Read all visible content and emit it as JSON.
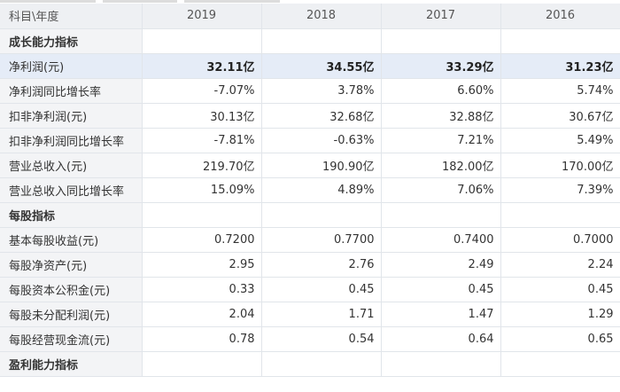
{
  "header": {
    "label": "科目\\年度",
    "years": [
      "2019",
      "2018",
      "2017",
      "2016"
    ]
  },
  "rows": [
    {
      "type": "section",
      "label": "成长能力指标"
    },
    {
      "type": "highlight",
      "label": "净利润(元)",
      "values": [
        "32.11亿",
        "34.55亿",
        "33.29亿",
        "31.23亿"
      ]
    },
    {
      "type": "data",
      "label": "净利润同比增长率",
      "values": [
        "-7.07%",
        "3.78%",
        "6.60%",
        "5.74%"
      ]
    },
    {
      "type": "data",
      "label": "扣非净利润(元)",
      "values": [
        "30.13亿",
        "32.68亿",
        "32.88亿",
        "30.67亿"
      ]
    },
    {
      "type": "data",
      "label": "扣非净利润同比增长率",
      "values": [
        "-7.81%",
        "-0.63%",
        "7.21%",
        "5.49%"
      ]
    },
    {
      "type": "data",
      "label": "营业总收入(元)",
      "values": [
        "219.70亿",
        "190.90亿",
        "182.00亿",
        "170.00亿"
      ]
    },
    {
      "type": "data",
      "label": "营业总收入同比增长率",
      "values": [
        "15.09%",
        "4.89%",
        "7.06%",
        "7.39%"
      ]
    },
    {
      "type": "section",
      "label": "每股指标"
    },
    {
      "type": "data",
      "label": "基本每股收益(元)",
      "values": [
        "0.7200",
        "0.7700",
        "0.7400",
        "0.7000"
      ]
    },
    {
      "type": "data",
      "label": "每股净资产(元)",
      "values": [
        "2.95",
        "2.76",
        "2.49",
        "2.24"
      ]
    },
    {
      "type": "data",
      "label": "每股资本公积金(元)",
      "values": [
        "0.33",
        "0.45",
        "0.45",
        "0.45"
      ]
    },
    {
      "type": "data",
      "label": "每股未分配利润(元)",
      "values": [
        "2.04",
        "1.71",
        "1.47",
        "1.29"
      ]
    },
    {
      "type": "data",
      "label": "每股经营现金流(元)",
      "values": [
        "0.78",
        "0.54",
        "0.64",
        "0.65"
      ]
    },
    {
      "type": "section",
      "label": "盈利能力指标"
    }
  ]
}
